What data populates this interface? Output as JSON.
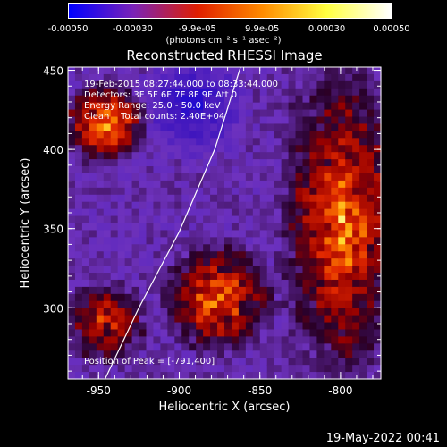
{
  "chart_data": {
    "type": "heatmap",
    "title": "Reconstructed RHESSI Image",
    "xlabel": "Heliocentric X (arcsec)",
    "ylabel": "Heliocentric Y (arcsec)",
    "xlim": [
      -969,
      -775
    ],
    "ylim": [
      255,
      452
    ],
    "xticks": [
      -950,
      -900,
      -850,
      -800
    ],
    "yticks": [
      300,
      350,
      400,
      450
    ],
    "colorbar": {
      "range": [
        -0.0005,
        0.0005
      ],
      "ticks": [
        "-0.00050",
        "-0.00030",
        "-9.9e-05",
        "9.9e-05",
        "0.00030",
        "0.00050"
      ],
      "units": "(photons cm⁻² s⁻¹ asec⁻²)",
      "colors": [
        "#0000ff",
        "#7a22b8",
        "#e01e00",
        "#ff8a00",
        "#ffff40",
        "#ffffff"
      ]
    },
    "annotations": [
      "19-Feb-2015 08:27:44.000 to 08:33:44.000",
      "Detectors: 3F 5F 6F 7F 8F 9F Att 0",
      "Energy Range: 25.0 - 50.0 keV",
      "Clean    Total counts: 2.40E+04"
    ],
    "peak_label": "Position of Peak = [-791,400]",
    "peak": [
      -791,
      400
    ],
    "limb_curve": [
      [
        -946,
        255
      ],
      [
        -925,
        300
      ],
      [
        -900,
        348
      ],
      [
        -878,
        400
      ],
      [
        -862,
        452
      ]
    ],
    "regions": [
      {
        "name": "upper-left blob",
        "center": [
          -945,
          410
        ],
        "level": 0.00032
      },
      {
        "name": "right emission",
        "center": [
          -800,
          360
        ],
        "level": 0.00045
      },
      {
        "name": "bottom-center blob",
        "center": [
          -880,
          290
        ],
        "level": 0.0003
      },
      {
        "name": "lower-left blob",
        "center": [
          -945,
          280
        ],
        "level": 0.00022
      }
    ]
  },
  "footer": "19-May-2022 00:41"
}
